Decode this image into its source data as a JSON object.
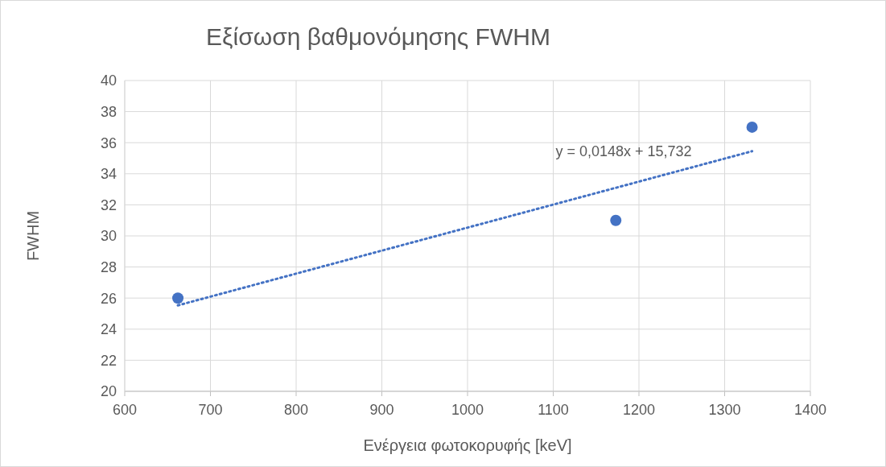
{
  "chart_data": {
    "type": "scatter",
    "title": "Εξίσωση βαθμονόμησης FWHM",
    "xlabel": "Ενέργεια φωτοκορυφής [keV]",
    "ylabel": "FWHM",
    "xlim": [
      600,
      1400
    ],
    "xticks": [
      600,
      700,
      800,
      900,
      1000,
      1100,
      1200,
      1300,
      1400
    ],
    "ylim": [
      20,
      40
    ],
    "yticks": [
      20,
      22,
      24,
      26,
      28,
      30,
      32,
      34,
      36,
      38,
      40
    ],
    "grid": true,
    "series": [
      {
        "color": "#4472c4",
        "marker": "circle",
        "x": [
          662,
          1173,
          1332
        ],
        "values": [
          26,
          31,
          37
        ]
      },
      {
        "type": "line",
        "color": "#4472c4",
        "marker": "none",
        "line_style": "dotted",
        "x": [
          662,
          1332
        ],
        "values": [
          25.53,
          35.45
        ]
      }
    ],
    "annotations": [
      "y = 0,0148x + 15,732"
    ]
  }
}
